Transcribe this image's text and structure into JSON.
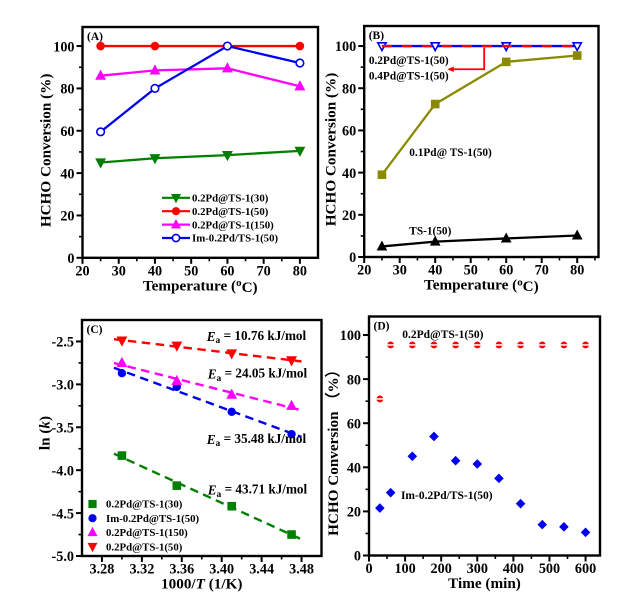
{
  "figure": {
    "background": "#ffffff",
    "description": "Four-panel catalysis figure: HCHO conversion vs temperature (A, B), Arrhenius plot (C), and stability test vs time (D)"
  },
  "chart_data": [
    {
      "id": "A",
      "panel_label": "(A)",
      "type": "line",
      "xlabel_segments": [
        {
          "t": "Temperature ("
        },
        {
          "t": "o",
          "sup": true
        },
        {
          "t": "C)"
        }
      ],
      "ylabel": "HCHO Conversion (%)",
      "xlim": [
        20,
        85
      ],
      "ylim": [
        0,
        109
      ],
      "xticks": [
        "20",
        "30",
        "40",
        "50",
        "60",
        "70",
        "80"
      ],
      "xtick_values": [
        20,
        30,
        40,
        50,
        60,
        70,
        80
      ],
      "yticks": [
        "0",
        "20",
        "40",
        "60",
        "80",
        "100"
      ],
      "ytick_values": [
        0,
        20,
        40,
        60,
        80,
        100
      ],
      "x_minor_step": 5,
      "y_minor_step": 10,
      "x": [
        25,
        40,
        60,
        80
      ],
      "series": [
        {
          "name": "0.2Pd@TS-1(30)",
          "color": "#008000",
          "marker": "triangle-down",
          "marker_fill": "solid",
          "line": "solid",
          "values": [
            45,
            47,
            48.5,
            50.5
          ]
        },
        {
          "name": "0.2Pd@TS-1(50)",
          "color": "#ff0000",
          "marker": "circle",
          "marker_fill": "solid",
          "line": "solid",
          "values": [
            100,
            100,
            100,
            100
          ]
        },
        {
          "name": "0.2Pd@TS-1(150)",
          "color": "#ff00ff",
          "marker": "triangle-up",
          "marker_fill": "solid",
          "line": "solid",
          "values": [
            86,
            88.5,
            89.5,
            81
          ]
        },
        {
          "name": "Im-0.2Pd/TS-1(50)",
          "color": "#0000ee",
          "marker": "circle",
          "marker_fill": "open",
          "line": "solid",
          "values": [
            59.5,
            80,
            100,
            92
          ]
        }
      ],
      "legend": {
        "position": "inside-lower-right",
        "items": [
          "0.2Pd@TS-1(30)",
          "0.2Pd@TS-1(50)",
          "0.2Pd@TS-1(150)",
          "Im-0.2Pd/TS-1(50)"
        ]
      }
    },
    {
      "id": "B",
      "panel_label": "(B)",
      "type": "line",
      "xlabel_segments": [
        {
          "t": "Temperature ("
        },
        {
          "t": "o",
          "sup": true
        },
        {
          "t": "C)"
        }
      ],
      "ylabel": "HCHO Conversion (%)",
      "xlim": [
        20,
        86
      ],
      "ylim": [
        0,
        109.5
      ],
      "xticks": [
        "20",
        "30",
        "40",
        "50",
        "60",
        "70",
        "80"
      ],
      "xtick_values": [
        20,
        30,
        40,
        50,
        60,
        70,
        80
      ],
      "yticks": [
        "0",
        "20",
        "40",
        "60",
        "80",
        "100"
      ],
      "ytick_values": [
        0,
        20,
        40,
        60,
        80,
        100
      ],
      "x_minor_step": 5,
      "y_minor_step": 10,
      "x": [
        25,
        40,
        60,
        80
      ],
      "series": [
        {
          "name": "0.2Pd@TS-1(50)",
          "color": "#ff0000",
          "marker": "none",
          "marker_fill": "solid",
          "line": "dashed",
          "values": [
            100,
            100,
            100,
            100
          ]
        },
        {
          "name": "0.4Pd@TS-1(50)",
          "color": "#0000ee",
          "marker": "triangle-down",
          "marker_fill": "open",
          "line": "solid",
          "values": [
            100,
            100,
            100,
            100
          ],
          "draw_under": true
        },
        {
          "name": "0.1Pd@TS-1(50)",
          "color": "#8a8a00",
          "marker": "square",
          "marker_fill": "solid",
          "line": "solid",
          "values": [
            39,
            72.5,
            92.5,
            95.5
          ]
        },
        {
          "name": "TS-1(50)",
          "color": "#000000",
          "marker": "triangle-up",
          "marker_fill": "solid",
          "line": "solid",
          "values": [
            5,
            7.3,
            8.8,
            10.2
          ]
        }
      ],
      "annotations": [
        {
          "name": "label-02pd",
          "text": "0.2Pd@TS-1(50)",
          "x": 21.3,
          "y": 93.3,
          "size": 11.3
        },
        {
          "name": "label-04pd",
          "text": "0.4Pd@TS-1(50)",
          "x": 21.3,
          "y": 86.0,
          "size": 11.3
        },
        {
          "name": "label-01pd",
          "text": "0.1Pd@ TS-1(50)",
          "x": 32.7,
          "y": 49.8,
          "size": 11.3
        },
        {
          "name": "label-ts150",
          "text": "TS-1(50)",
          "x": 32.7,
          "y": 12.6,
          "size": 11.3
        }
      ],
      "callout": {
        "color": "#ff0000",
        "points_xy": [
          [
            53.8,
            99.2
          ],
          [
            53.8,
            89.0
          ],
          [
            44.3,
            89.0
          ]
        ],
        "arrow_tip": [
          43.4,
          89.0
        ]
      }
    },
    {
      "id": "C",
      "panel_label": "(C)",
      "type": "scatter-fit",
      "xlabel_segments": [
        {
          "t": "1000/"
        },
        {
          "t": "T",
          "italic": true
        },
        {
          "t": " (1/K)"
        }
      ],
      "ylabel_segments": [
        {
          "t": "ln ("
        },
        {
          "t": "k",
          "italic": true
        },
        {
          "t": ")"
        }
      ],
      "xlim": [
        3.26,
        3.5
      ],
      "ylim": [
        -5.0,
        -2.25
      ],
      "xticks": [
        "3.28",
        "3.32",
        "3.36",
        "3.40",
        "3.44",
        "3.48"
      ],
      "xtick_values": [
        3.28,
        3.32,
        3.36,
        3.4,
        3.44,
        3.48
      ],
      "yticks": [
        "-2.5",
        "-3.0",
        "-3.5",
        "-4.0",
        "-4.5",
        "-5.0"
      ],
      "ytick_values": [
        -2.5,
        -3.0,
        -3.5,
        -4.0,
        -4.5,
        -5.0
      ],
      "x_minor_step": 0.02,
      "y_minor_step": 0.25,
      "x": [
        3.3,
        3.355,
        3.41,
        3.47
      ],
      "fit_x_range": [
        3.292,
        3.48
      ],
      "series": [
        {
          "name": "0.2Pd@TS-1(30)",
          "color": "#008000",
          "marker": "square",
          "marker_fill": "solid",
          "line": "dashed-fit",
          "values": [
            -3.83,
            -4.18,
            -4.42,
            -4.75
          ],
          "Ea_kJ_mol": 43.71
        },
        {
          "name": "Im-0.2Pd@TS-1(50)",
          "color": "#0000ee",
          "marker": "circle",
          "marker_fill": "solid",
          "line": "dashed-fit",
          "values": [
            -2.87,
            -3.03,
            -3.32,
            -3.58
          ],
          "Ea_kJ_mol": 35.48
        },
        {
          "name": "0.2Pd@TS-1(150)",
          "color": "#ff00ff",
          "marker": "triangle-up",
          "marker_fill": "solid",
          "line": "dashed-fit",
          "values": [
            -2.75,
            -2.96,
            -3.12,
            -3.25
          ],
          "Ea_kJ_mol": 24.05
        },
        {
          "name": "0.2Pd@TS-1(50)",
          "color": "#ff0000",
          "marker": "triangle-down",
          "marker_fill": "solid",
          "line": "dashed-fit",
          "values": [
            -2.49,
            -2.55,
            -2.64,
            -2.72
          ],
          "Ea_kJ_mol": 10.76
        }
      ],
      "annotations": [
        {
          "name": "ea-10.76",
          "segments": [
            {
              "t": "E",
              "italic": true
            },
            {
              "t": "a",
              "sub": true
            },
            {
              "t": " = 10.76 kJ/mol"
            }
          ],
          "x": 3.385,
          "y": -2.44,
          "size": 13.2
        },
        {
          "name": "ea-24.05",
          "segments": [
            {
              "t": "E",
              "italic": true
            },
            {
              "t": "a",
              "sub": true
            },
            {
              "t": " = 24.05 kJ/mol"
            }
          ],
          "x": 3.386,
          "y": -2.88,
          "size": 13.2
        },
        {
          "name": "ea-35.48",
          "segments": [
            {
              "t": "E",
              "italic": true
            },
            {
              "t": "a",
              "sub": true
            },
            {
              "t": " = 35.48 kJ/mol"
            }
          ],
          "x": 3.385,
          "y": -3.64,
          "size": 13.2
        },
        {
          "name": "ea-43.71",
          "segments": [
            {
              "t": "E",
              "italic": true
            },
            {
              "t": "a",
              "sub": true
            },
            {
              "t": " = 43.71 kJ/mol"
            }
          ],
          "x": 3.386,
          "y": -4.23,
          "size": 13.2
        }
      ],
      "legend": {
        "position": "inside-lower-left",
        "marker_only": true,
        "items": [
          "0.2Pd@TS-1(30)",
          "Im-0.2Pd@TS-1(50)",
          "0.2Pd@TS-1(150)",
          "0.2Pd@TS-1(50)"
        ]
      }
    },
    {
      "id": "D",
      "panel_label": "(D)",
      "type": "scatter",
      "xlabel_segments": [
        {
          "t": "Time (min)"
        }
      ],
      "ylabel": "HCHO Conversion （%）",
      "xlim": [
        0,
        640
      ],
      "ylim": [
        0,
        108.4
      ],
      "xticks": [
        "0",
        "100",
        "200",
        "300",
        "400",
        "500",
        "600"
      ],
      "xtick_values": [
        0,
        100,
        200,
        300,
        400,
        500,
        600
      ],
      "yticks": [
        "0",
        "20",
        "40",
        "60",
        "80",
        "100"
      ],
      "ytick_values": [
        0,
        20,
        40,
        60,
        80,
        100
      ],
      "x_minor_step": 50,
      "y_minor_step": 10,
      "x": [
        30,
        60,
        120,
        180,
        240,
        300,
        360,
        420,
        480,
        540,
        600
      ],
      "series": [
        {
          "name": "0.2Pd@TS-1(50)",
          "color": "#ff0000",
          "marker": "circle-slit",
          "marker_fill": "solid",
          "line": "none",
          "values": [
            71,
            95.5,
            95.5,
            95.5,
            95.5,
            95.5,
            95.5,
            95.5,
            95.5,
            95.5,
            95.5
          ]
        },
        {
          "name": "Im-0.2Pd/TS-1(50)",
          "color": "#0000ee",
          "marker": "diamond",
          "marker_fill": "solid",
          "line": "none",
          "values": [
            21.5,
            28.5,
            45,
            54,
            43,
            41.5,
            35,
            23.5,
            14,
            13,
            10.5
          ]
        }
      ],
      "annotations": [
        {
          "name": "label-02pd-d",
          "text": "0.2Pd@TS-1(50)",
          "x": 92,
          "y": 100.5,
          "size": 11.5
        },
        {
          "name": "label-im-d",
          "text": "Im-0.2Pd/TS-1(50)",
          "x": 88.5,
          "y": 27.5,
          "size": 11.5
        }
      ]
    }
  ]
}
